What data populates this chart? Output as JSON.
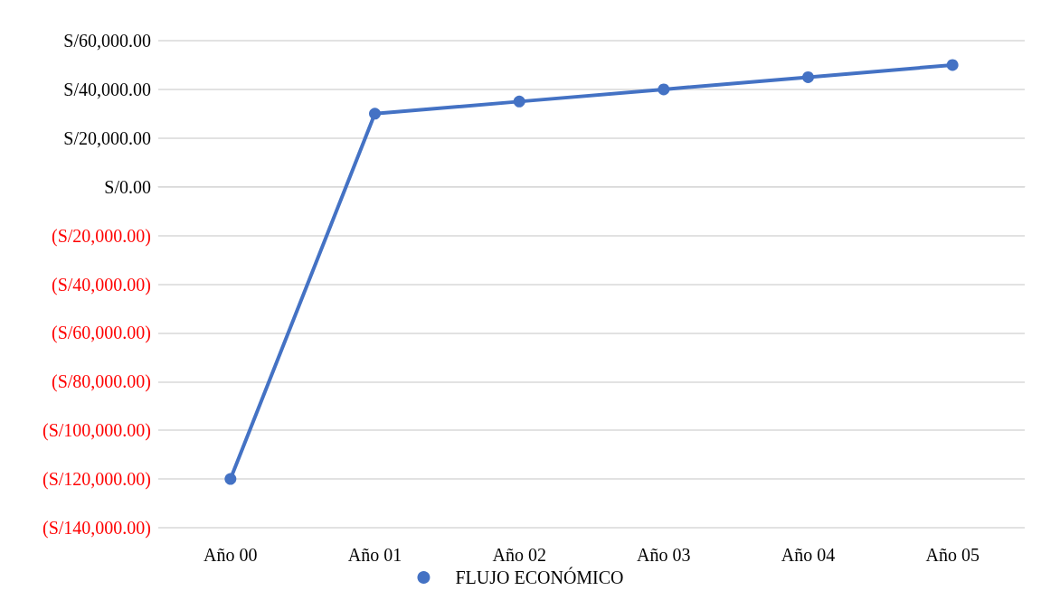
{
  "chart_data": {
    "type": "line",
    "categories": [
      "Año 00",
      "Año 01",
      "Año 02",
      "Año 03",
      "Año 04",
      "Año 05"
    ],
    "series": [
      {
        "name": "FLUJO ECONÓMICO",
        "color": "#4472c4",
        "values": [
          -120000,
          30000,
          35000,
          40000,
          45000,
          50000
        ]
      }
    ],
    "ylim": [
      -140000,
      60000
    ],
    "yticks": [
      {
        "value": -140000,
        "label": "(S/140,000.00)"
      },
      {
        "value": -120000,
        "label": "(S/120,000.00)"
      },
      {
        "value": -100000,
        "label": "(S/100,000.00)"
      },
      {
        "value": -80000,
        "label": "(S/80,000.00)"
      },
      {
        "value": -60000,
        "label": "(S/60,000.00)"
      },
      {
        "value": -40000,
        "label": "(S/40,000.00)"
      },
      {
        "value": -20000,
        "label": "(S/20,000.00)"
      },
      {
        "value": 0,
        "label": "S/0.00"
      },
      {
        "value": 20000,
        "label": "S/20,000.00"
      },
      {
        "value": 40000,
        "label": "S/40,000.00"
      },
      {
        "value": 60000,
        "label": "S/60,000.00"
      }
    ],
    "grid": "y",
    "legend": "bottom",
    "marker": "circle",
    "line_style": "solid"
  }
}
